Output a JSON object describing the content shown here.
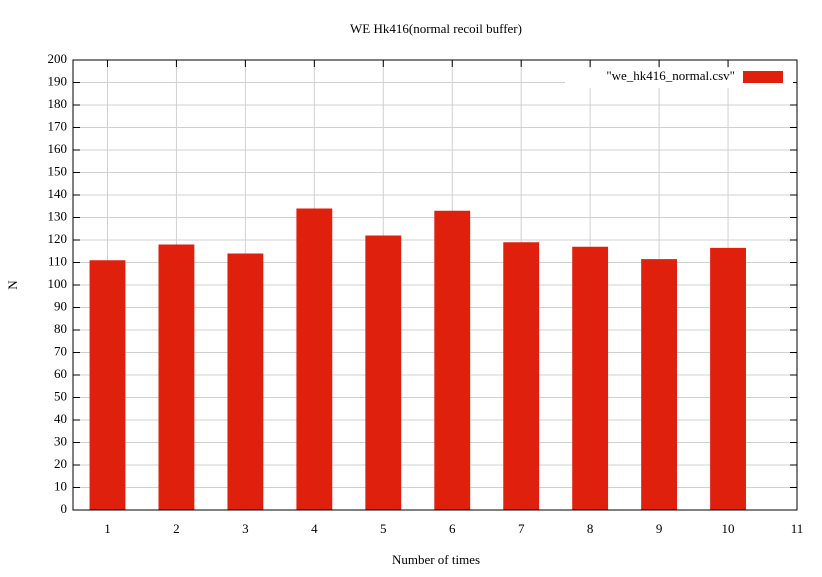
{
  "chart_data": {
    "type": "bar",
    "title": "WE Hk416(normal recoil buffer)",
    "x_label": "Number of times",
    "y_label": "N",
    "x": [
      1,
      2,
      3,
      4,
      5,
      6,
      7,
      8,
      9,
      10
    ],
    "series": [
      {
        "name": "\"we_hk416_normal.csv\"",
        "color": "#de200d",
        "values": [
          111,
          118,
          114,
          134,
          122,
          133,
          119,
          117,
          111.5,
          116.5
        ]
      }
    ],
    "xlim": [
      0.5,
      11
    ],
    "xticks": [
      1,
      2,
      3,
      4,
      5,
      6,
      7,
      8,
      9,
      10,
      11
    ],
    "ylim": [
      0,
      200
    ],
    "yticks": [
      0,
      10,
      20,
      30,
      40,
      50,
      60,
      70,
      80,
      90,
      100,
      110,
      120,
      130,
      140,
      150,
      160,
      170,
      180,
      190,
      200
    ],
    "grid": true,
    "legend": "top-right"
  }
}
